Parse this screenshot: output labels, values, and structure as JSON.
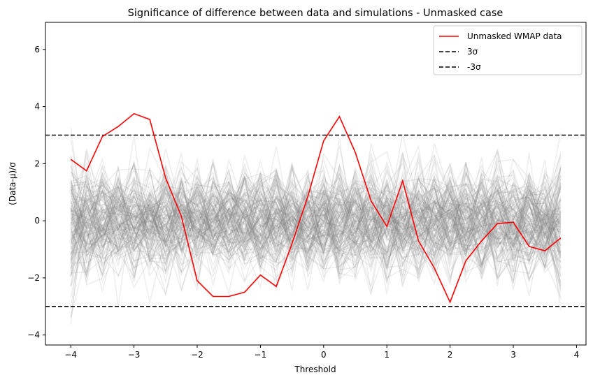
{
  "chart_data": {
    "type": "line",
    "title": "Significance of difference between data and simulations - Unmasked case",
    "xlabel": "Threshold",
    "ylabel": "(Data-μ)/σ",
    "xlim": [
      -4.4,
      4.15
    ],
    "ylim": [
      -4.35,
      6.95
    ],
    "xticks": [
      "−4",
      "−3",
      "−2",
      "−1",
      "0",
      "1",
      "2",
      "3",
      "4"
    ],
    "xtick_values": [
      -4,
      -3,
      -2,
      -1,
      0,
      1,
      2,
      3,
      4
    ],
    "yticks": [
      "−4",
      "−2",
      "0",
      "2",
      "4",
      "6"
    ],
    "ytick_values": [
      -4,
      -2,
      0,
      2,
      4,
      6
    ],
    "grid": false,
    "legend_position": "top-right",
    "series": [
      {
        "name": "Unmasked WMAP data",
        "color": "#ff0000",
        "x": [
          -4.0,
          -3.75,
          -3.5,
          -3.25,
          -3.0,
          -2.75,
          -2.5,
          -2.25,
          -2.0,
          -1.75,
          -1.5,
          -1.25,
          -1.0,
          -0.75,
          -0.5,
          -0.25,
          0.0,
          0.25,
          0.5,
          0.75,
          1.0,
          1.25,
          1.5,
          1.75,
          2.0,
          2.25,
          2.5,
          2.75,
          3.0,
          3.25,
          3.5,
          3.75
        ],
        "values": [
          2.15,
          1.75,
          2.95,
          3.3,
          3.75,
          3.55,
          1.5,
          0.15,
          -2.1,
          -2.65,
          -2.65,
          -2.5,
          -1.9,
          -2.3,
          -0.8,
          0.85,
          2.8,
          3.65,
          2.4,
          0.7,
          -0.2,
          1.4,
          -0.7,
          -1.65,
          -2.85,
          -1.4,
          -0.7,
          -0.1,
          -0.05,
          -0.9,
          -1.05,
          -0.6
        ]
      }
    ],
    "reference_lines": [
      {
        "name": "3σ",
        "value": 3,
        "color": "#000000",
        "style": "dashed"
      },
      {
        "name": "-3σ",
        "value": -3,
        "color": "#000000",
        "style": "dashed"
      }
    ],
    "simulations": {
      "color": "#808080",
      "count": 140,
      "x": [
        -4.0,
        -3.75,
        -3.5,
        -3.25,
        -3.0,
        -2.75,
        -2.5,
        -2.25,
        -2.0,
        -1.75,
        -1.5,
        -1.25,
        -1.0,
        -0.75,
        -0.5,
        -0.25,
        0.0,
        0.25,
        0.5,
        0.75,
        1.0,
        1.25,
        1.5,
        1.75,
        2.0,
        2.25,
        2.5,
        2.75,
        3.0,
        3.25,
        3.5,
        3.75
      ]
    }
  }
}
